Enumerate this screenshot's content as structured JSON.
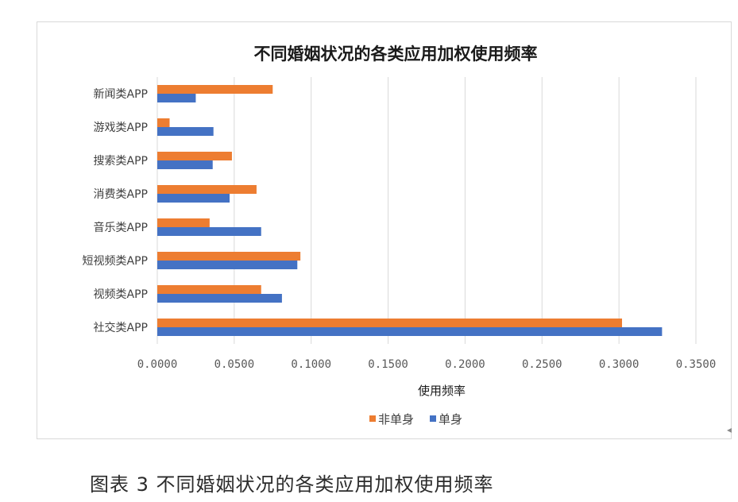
{
  "chart_data": {
    "type": "bar",
    "orientation": "horizontal",
    "title": "不同婚姻状况的各类应用加权使用频率",
    "xlabel": "使用频率",
    "ylabel": "",
    "categories": [
      "新闻类APP",
      "游戏类APP",
      "搜索类APP",
      "消费类APP",
      "音乐类APP",
      "短视频类APP",
      "视频类APP",
      "社交类APP"
    ],
    "series": [
      {
        "name": "非单身",
        "color": "#ED7D31",
        "values": [
          0.075,
          0.008,
          0.0485,
          0.0645,
          0.034,
          0.093,
          0.0675,
          0.302
        ]
      },
      {
        "name": "单身",
        "color": "#4472C4",
        "values": [
          0.025,
          0.0365,
          0.036,
          0.047,
          0.0675,
          0.091,
          0.081,
          0.328
        ]
      }
    ],
    "xlim": [
      0,
      0.35
    ],
    "xticks": [
      0,
      0.05,
      0.1,
      0.15,
      0.2,
      0.25,
      0.3,
      0.35
    ],
    "xtick_labels": [
      "0.0000",
      "0.0500",
      "0.1000",
      "0.1500",
      "0.2000",
      "0.2500",
      "0.3000",
      "0.3500"
    ],
    "grid": true,
    "legend_position": "bottom"
  },
  "caption": "图表 3   不同婚姻状况的各类应用加权使用频率",
  "edge_mark": "◂"
}
